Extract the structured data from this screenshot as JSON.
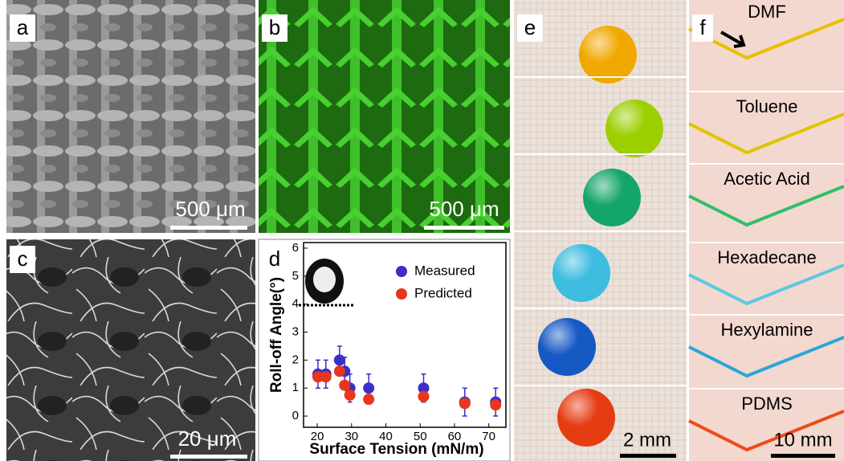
{
  "panels": [
    {
      "label": "a",
      "scale_bar": "500 μm"
    },
    {
      "label": "b",
      "scale_bar": "500 μm"
    },
    {
      "label": "c",
      "scale_bar": "20 μm"
    },
    {
      "label": "d"
    },
    {
      "label": "e",
      "scale_bar": "2 mm"
    },
    {
      "label": "f",
      "scale_bar": "10 mm",
      "liquids": [
        "DMF",
        "Toluene",
        "Acetic Acid",
        "Hexadecane",
        "Hexylamine",
        "PDMS"
      ]
    }
  ],
  "chart_data": {
    "type": "scatter",
    "x_label": "Surface Tension (mN/m)",
    "y_label": "Roll-off Angle(°)",
    "xlim": [
      16,
      75
    ],
    "ylim": [
      -0.4,
      6.2
    ],
    "xticks": [
      20,
      30,
      40,
      50,
      60,
      70
    ],
    "yticks": [
      0,
      1,
      2,
      3,
      4,
      5,
      6
    ],
    "series": [
      {
        "name": "Measured",
        "color": "#3a2fc8",
        "x": [
          20.2,
          22.5,
          26.5,
          28,
          29.5,
          35,
          51,
          63,
          72
        ],
        "values": [
          1.5,
          1.5,
          2.0,
          1.6,
          1.0,
          1.0,
          1.0,
          0.5,
          0.5
        ],
        "errors": [
          0.5,
          0.5,
          0.5,
          0.5,
          0.5,
          0.5,
          0.5,
          0.5,
          0.5
        ]
      },
      {
        "name": "Predicted",
        "color": "#e8351c",
        "x": [
          20.2,
          22.5,
          26.5,
          28,
          29.5,
          35,
          51,
          63,
          72
        ],
        "values": [
          1.4,
          1.4,
          1.6,
          1.1,
          0.75,
          0.6,
          0.7,
          0.45,
          0.4
        ]
      }
    ]
  }
}
